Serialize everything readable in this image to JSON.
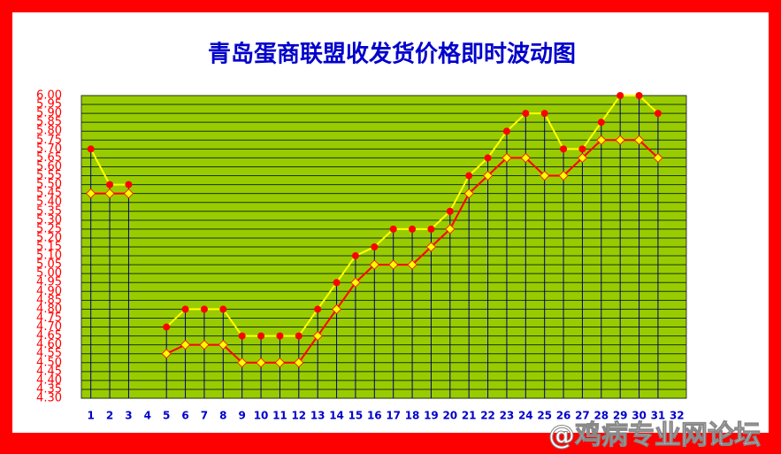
{
  "chart_data": {
    "type": "line",
    "title": "青岛蛋商联盟收发货价格即时波动图",
    "watermark": "@鸡病专业网论坛",
    "categories": [
      "1",
      "2",
      "3",
      "4",
      "5",
      "6",
      "7",
      "8",
      "9",
      "10",
      "11",
      "12",
      "13",
      "14",
      "15",
      "16",
      "17",
      "18",
      "19",
      "20",
      "21",
      "22",
      "23",
      "24",
      "25",
      "26",
      "27",
      "28",
      "29",
      "30",
      "31",
      "32"
    ],
    "series": [
      {
        "color": "#ffff00",
        "marker": "circle",
        "marker_color": "#ff0000",
        "values": [
          5.7,
          5.5,
          5.5,
          null,
          4.7,
          4.8,
          4.8,
          4.8,
          4.65,
          4.65,
          4.65,
          4.65,
          4.8,
          4.95,
          5.1,
          5.15,
          5.25,
          5.25,
          5.25,
          5.35,
          5.55,
          5.65,
          5.8,
          5.9,
          5.9,
          5.7,
          5.7,
          5.85,
          6.0,
          6.0,
          5.9,
          null
        ]
      },
      {
        "color": "#ff0000",
        "marker": "diamond",
        "marker_color": "#ffff00",
        "values": [
          5.45,
          5.45,
          5.45,
          null,
          4.55,
          4.6,
          4.6,
          4.6,
          4.5,
          4.5,
          4.5,
          4.5,
          4.65,
          4.8,
          4.95,
          5.05,
          5.05,
          5.05,
          5.15,
          5.25,
          5.45,
          5.55,
          5.65,
          5.65,
          5.55,
          5.55,
          5.65,
          5.75,
          5.75,
          5.75,
          5.65,
          null
        ]
      }
    ],
    "ylim": [
      4.3,
      6.0
    ],
    "yticks": [
      {
        "value": 4.3,
        "label": "4.30"
      },
      4.35,
      {
        "value": 4.4,
        "label": "4.40"
      },
      4.45,
      {
        "value": 4.5,
        "label": "4.50"
      },
      4.55,
      {
        "value": 4.6,
        "label": "4.60"
      },
      4.65,
      {
        "value": 4.7,
        "label": "4.70"
      },
      4.75,
      {
        "value": 4.8,
        "label": "4.80"
      },
      4.85,
      {
        "value": 4.9,
        "label": "4.90"
      },
      4.95,
      {
        "value": 5.0,
        "label": "5.00"
      },
      5.05,
      {
        "value": 5.1,
        "label": "5.10"
      },
      5.15,
      {
        "value": 5.2,
        "label": "5.20"
      },
      5.25,
      {
        "value": 5.3,
        "label": "5.30"
      },
      5.35,
      {
        "value": 5.4,
        "label": "5.40"
      },
      5.45,
      {
        "value": 5.5,
        "label": "5.50"
      },
      5.55,
      {
        "value": 5.6,
        "label": "5.60"
      },
      5.65,
      {
        "value": 5.7,
        "label": "5.70"
      },
      5.75,
      {
        "value": 5.8,
        "label": "5.80"
      },
      5.85,
      {
        "value": 5.9,
        "label": "5.90"
      },
      5.95,
      {
        "value": 6.0,
        "label": "6.00"
      }
    ],
    "grid": true
  }
}
